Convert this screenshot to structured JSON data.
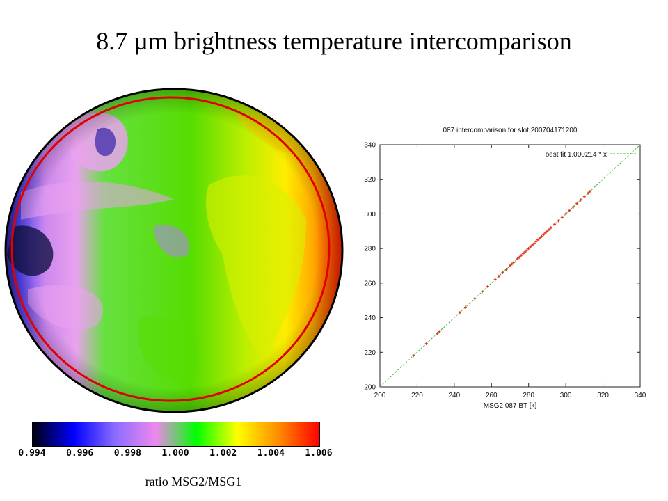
{
  "slide": {
    "title": "8.7 µm brightness temperature intercomparison"
  },
  "colorbar": {
    "tick_labels": [
      "0.994",
      "0.996",
      "0.998",
      "1.000",
      "1.002",
      "1.004",
      "1.006"
    ],
    "caption": "ratio MSG2/MSG1",
    "range": [
      0.994,
      1.006
    ],
    "stops": [
      "#000010",
      "#0000ff",
      "#8a6cff",
      "#ee88ee",
      "#00ff00",
      "#ffff00",
      "#ff8c00",
      "#ff0000"
    ]
  },
  "disk": {
    "ring_color": "#e00000"
  },
  "chart_data": {
    "type": "scatter",
    "title": "087 intercomparison for slot 200704171200",
    "xlabel": "MSG2 087 BT [k]",
    "ylabel": "",
    "xlim": [
      200,
      340
    ],
    "ylim": [
      200,
      340
    ],
    "x_ticks": [
      "200",
      "220",
      "240",
      "260",
      "280",
      "300",
      "320",
      "340"
    ],
    "y_ticks": [
      "200",
      "220",
      "240",
      "260",
      "280",
      "300",
      "320",
      "340"
    ],
    "legend": {
      "label": "best fit 1.000214 * x",
      "position": "top-right"
    },
    "fit_slope": 1.000214,
    "fit_color": "#33bb33",
    "point_color": "#ee3322",
    "points": [
      [
        218,
        218
      ],
      [
        225,
        225
      ],
      [
        231,
        231
      ],
      [
        232,
        232
      ],
      [
        243,
        243
      ],
      [
        246,
        246
      ],
      [
        251,
        251
      ],
      [
        255,
        255
      ],
      [
        258,
        258
      ],
      [
        262,
        262
      ],
      [
        264,
        264
      ],
      [
        266,
        266
      ],
      [
        268,
        268
      ],
      [
        270,
        270
      ],
      [
        271,
        271
      ],
      [
        272,
        272
      ],
      [
        274,
        274
      ],
      [
        275,
        275
      ],
      [
        276,
        276
      ],
      [
        277,
        277
      ],
      [
        278,
        278
      ],
      [
        279,
        279
      ],
      [
        280,
        280
      ],
      [
        281,
        281
      ],
      [
        282,
        282
      ],
      [
        283,
        283
      ],
      [
        284,
        284
      ],
      [
        285,
        285
      ],
      [
        286,
        286
      ],
      [
        287,
        287
      ],
      [
        288,
        288
      ],
      [
        289,
        289
      ],
      [
        290,
        290
      ],
      [
        291,
        291
      ],
      [
        292,
        292
      ],
      [
        294,
        294
      ],
      [
        296,
        296
      ],
      [
        298,
        298
      ],
      [
        300,
        300
      ],
      [
        302,
        302
      ],
      [
        304,
        304
      ],
      [
        306,
        306
      ],
      [
        308,
        308
      ],
      [
        310,
        310
      ],
      [
        312,
        312
      ],
      [
        313,
        313
      ]
    ]
  }
}
